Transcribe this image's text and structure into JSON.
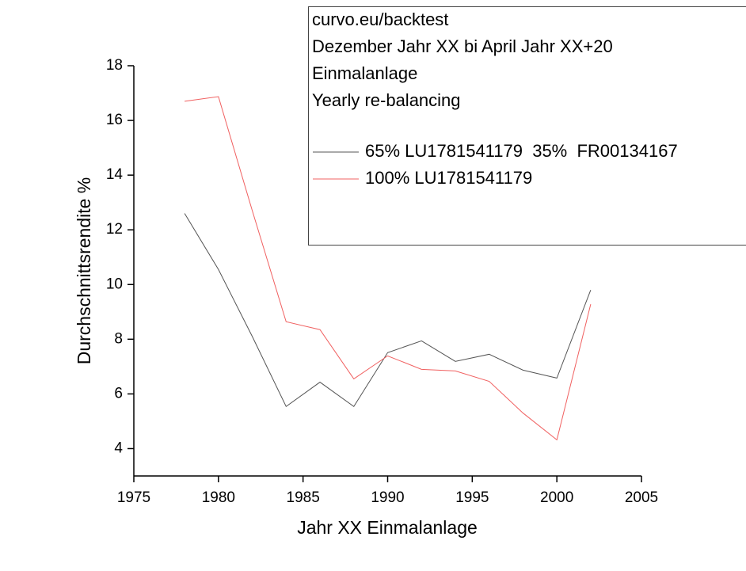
{
  "chart_data": {
    "type": "line",
    "x_label": "Jahr XX Einmalanlage",
    "y_label": "Durchschnittsrendite %",
    "annotations": [
      "curvo.eu/backtest",
      "Dezember Jahr XX bi April Jahr XX+20",
      "Einmalanlage",
      "Yearly re-balancing"
    ],
    "x": [
      1978,
      1980,
      1982,
      1984,
      1986,
      1988,
      1990,
      1992,
      1994,
      1996,
      1998,
      2000,
      2002
    ],
    "series": [
      {
        "name": "65% LU1781541179  35%  FR00134167",
        "color": "#555555",
        "values": [
          12.6,
          10.55,
          8.1,
          5.54,
          6.43,
          5.54,
          7.51,
          7.94,
          7.19,
          7.45,
          6.87,
          6.58,
          9.8
        ]
      },
      {
        "name": "100% LU1781541179",
        "color": "#f06060",
        "values": [
          16.7,
          16.87,
          12.7,
          8.64,
          8.35,
          6.55,
          7.39,
          6.9,
          6.84,
          6.46,
          5.3,
          4.32,
          9.28
        ]
      }
    ],
    "xlim": [
      1975,
      2005
    ],
    "xticks": [
      1975,
      1980,
      1985,
      1990,
      1995,
      2000,
      2005
    ],
    "ylim": [
      3,
      18
    ],
    "yticks": [
      4,
      6,
      8,
      10,
      12,
      14,
      16,
      18
    ],
    "grid": false
  }
}
